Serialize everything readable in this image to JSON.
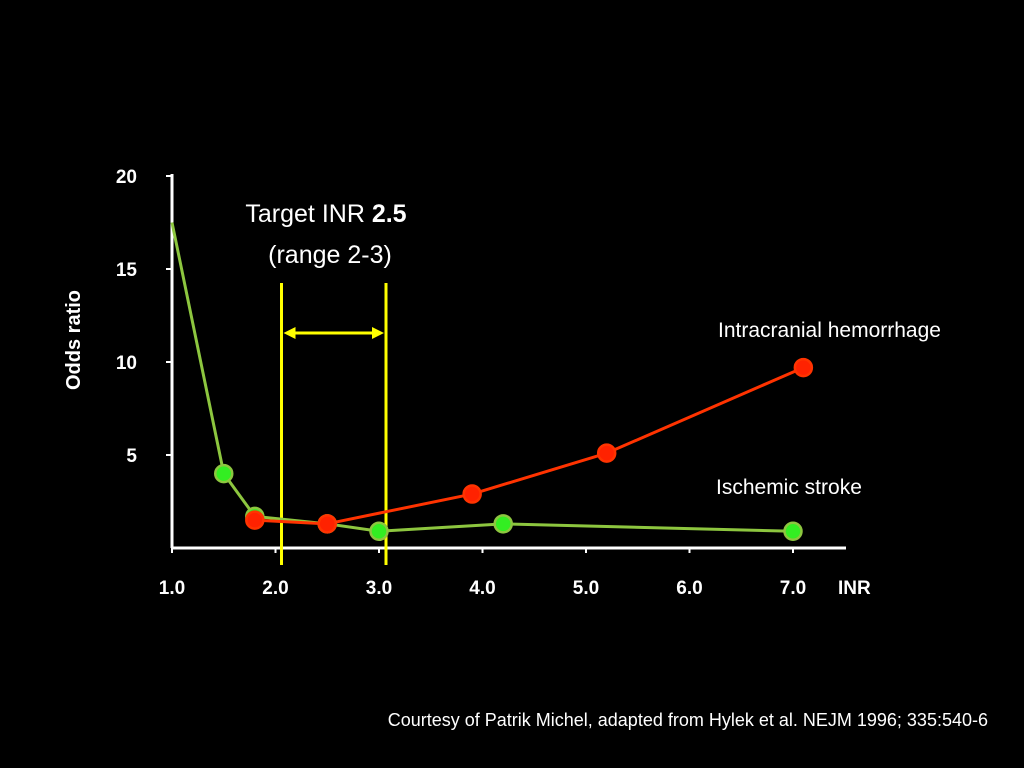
{
  "chart_data": {
    "type": "line",
    "xlabel": "INR",
    "ylabel": "Odds ratio",
    "xlim": [
      1.0,
      7.5
    ],
    "ylim": [
      0,
      20
    ],
    "x_tick_labels": [
      "1.0",
      "2.0",
      "3.0",
      "4.0",
      "5.0",
      "6.0",
      "7.0"
    ],
    "x_tick_values": [
      1.0,
      2.0,
      3.0,
      4.0,
      5.0,
      6.0,
      7.0
    ],
    "y_tick_labels": [
      "5",
      "10",
      "15",
      "20"
    ],
    "y_tick_values": [
      5,
      10,
      15,
      20
    ],
    "grid": false,
    "legend": "none (direct labels)",
    "series": [
      {
        "name": "Ischemic stroke",
        "color": "#8dc63f",
        "marker_color": "#33ee22",
        "x": [
          1.0,
          1.5,
          1.8,
          2.5,
          3.0,
          4.2,
          7.0
        ],
        "y": [
          17.5,
          4.0,
          1.7,
          1.3,
          0.9,
          1.3,
          0.9
        ],
        "markers": [
          false,
          true,
          true,
          true,
          true,
          true,
          true
        ]
      },
      {
        "name": "Intracranial hemorrhage",
        "color": "#ff3300",
        "marker_color": "#ff2200",
        "x": [
          1.8,
          2.5,
          3.9,
          5.2,
          7.1
        ],
        "y": [
          1.5,
          1.3,
          2.9,
          5.1,
          9.7
        ],
        "markers": [
          true,
          true,
          true,
          true,
          true
        ]
      }
    ],
    "target_range": {
      "low": 2.0,
      "high": 3.0,
      "target": 2.5,
      "color": "#ffff00",
      "label_line1_prefix": "Target INR ",
      "label_line1_bold": "2.5",
      "label_line2": "(range 2-3)"
    }
  },
  "footer": {
    "credit": "Courtesy of Patrik Michel, adapted from Hylek et al. NEJM 1996; 335:540-6"
  }
}
